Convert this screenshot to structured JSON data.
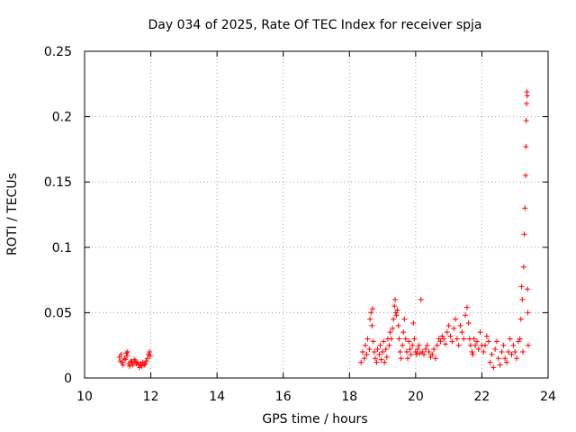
{
  "chart_data": {
    "type": "scatter",
    "title": "Day 034 of 2025, Rate Of TEC Index for receiver spja",
    "xlabel": "GPS time / hours",
    "ylabel": "ROTI / TECUs",
    "xlim": [
      10,
      24
    ],
    "ylim": [
      0,
      0.25
    ],
    "x_ticks": [
      10,
      12,
      14,
      16,
      18,
      20,
      22,
      24
    ],
    "x_tick_labels": [
      "10",
      "12",
      "14",
      "16",
      "18",
      "20",
      "22",
      "24"
    ],
    "y_ticks": [
      0,
      0.05,
      0.1,
      0.15,
      0.2,
      0.25
    ],
    "y_tick_labels": [
      "0",
      "0.05",
      "0.1",
      "0.15",
      "0.2",
      "0.25"
    ],
    "grid": true,
    "legend": "none",
    "marker": "plus",
    "color": "#ff0000",
    "points": [
      [
        11.05,
        0.016
      ],
      [
        11.08,
        0.013
      ],
      [
        11.1,
        0.018
      ],
      [
        11.13,
        0.012
      ],
      [
        11.16,
        0.01
      ],
      [
        11.2,
        0.015
      ],
      [
        11.23,
        0.014
      ],
      [
        11.26,
        0.019
      ],
      [
        11.28,
        0.017
      ],
      [
        11.3,
        0.02
      ],
      [
        11.33,
        0.011
      ],
      [
        11.36,
        0.009
      ],
      [
        11.4,
        0.013
      ],
      [
        11.43,
        0.012
      ],
      [
        11.46,
        0.01
      ],
      [
        11.5,
        0.014
      ],
      [
        11.53,
        0.013
      ],
      [
        11.56,
        0.011
      ],
      [
        11.6,
        0.012
      ],
      [
        11.63,
        0.01
      ],
      [
        11.66,
        0.008
      ],
      [
        11.7,
        0.011
      ],
      [
        11.73,
        0.009
      ],
      [
        11.76,
        0.012
      ],
      [
        11.8,
        0.01
      ],
      [
        11.83,
        0.011
      ],
      [
        11.86,
        0.013
      ],
      [
        11.9,
        0.015
      ],
      [
        11.93,
        0.018
      ],
      [
        11.96,
        0.02
      ],
      [
        11.98,
        0.017
      ],
      [
        18.35,
        0.012
      ],
      [
        18.4,
        0.02
      ],
      [
        18.45,
        0.015
      ],
      [
        18.48,
        0.025
      ],
      [
        18.52,
        0.018
      ],
      [
        18.55,
        0.03
      ],
      [
        18.6,
        0.022
      ],
      [
        18.62,
        0.045
      ],
      [
        18.65,
        0.05
      ],
      [
        18.68,
        0.04
      ],
      [
        18.7,
        0.053
      ],
      [
        18.72,
        0.028
      ],
      [
        18.75,
        0.02
      ],
      [
        18.78,
        0.015
      ],
      [
        18.82,
        0.012
      ],
      [
        18.85,
        0.022
      ],
      [
        18.9,
        0.018
      ],
      [
        18.93,
        0.025
      ],
      [
        18.96,
        0.014
      ],
      [
        19.0,
        0.02
      ],
      [
        19.03,
        0.028
      ],
      [
        19.06,
        0.012
      ],
      [
        19.1,
        0.022
      ],
      [
        19.13,
        0.016
      ],
      [
        19.16,
        0.03
      ],
      [
        19.2,
        0.025
      ],
      [
        19.23,
        0.035
      ],
      [
        19.26,
        0.03
      ],
      [
        19.3,
        0.038
      ],
      [
        19.33,
        0.045
      ],
      [
        19.36,
        0.055
      ],
      [
        19.38,
        0.06
      ],
      [
        19.4,
        0.05
      ],
      [
        19.42,
        0.048
      ],
      [
        19.45,
        0.052
      ],
      [
        19.48,
        0.04
      ],
      [
        19.5,
        0.03
      ],
      [
        19.53,
        0.02
      ],
      [
        19.56,
        0.015
      ],
      [
        19.6,
        0.025
      ],
      [
        19.63,
        0.035
      ],
      [
        19.66,
        0.045
      ],
      [
        19.7,
        0.03
      ],
      [
        19.73,
        0.02
      ],
      [
        19.76,
        0.015
      ],
      [
        19.8,
        0.028
      ],
      [
        19.83,
        0.022
      ],
      [
        19.86,
        0.018
      ],
      [
        19.9,
        0.025
      ],
      [
        19.93,
        0.042
      ],
      [
        19.96,
        0.03
      ],
      [
        20.0,
        0.02
      ],
      [
        20.03,
        0.018
      ],
      [
        20.06,
        0.022
      ],
      [
        20.1,
        0.025
      ],
      [
        20.13,
        0.019
      ],
      [
        20.16,
        0.06
      ],
      [
        20.2,
        0.02
      ],
      [
        20.25,
        0.018
      ],
      [
        20.3,
        0.022
      ],
      [
        20.35,
        0.025
      ],
      [
        20.4,
        0.02
      ],
      [
        20.45,
        0.016
      ],
      [
        20.5,
        0.018
      ],
      [
        20.55,
        0.022
      ],
      [
        20.6,
        0.015
      ],
      [
        20.65,
        0.025
      ],
      [
        20.7,
        0.03
      ],
      [
        20.75,
        0.028
      ],
      [
        20.8,
        0.032
      ],
      [
        20.85,
        0.03
      ],
      [
        20.9,
        0.026
      ],
      [
        20.95,
        0.035
      ],
      [
        21.0,
        0.04
      ],
      [
        21.05,
        0.032
      ],
      [
        21.1,
        0.028
      ],
      [
        21.15,
        0.038
      ],
      [
        21.2,
        0.045
      ],
      [
        21.25,
        0.03
      ],
      [
        21.3,
        0.025
      ],
      [
        21.35,
        0.04
      ],
      [
        21.4,
        0.035
      ],
      [
        21.45,
        0.03
      ],
      [
        21.5,
        0.048
      ],
      [
        21.55,
        0.054
      ],
      [
        21.6,
        0.042
      ],
      [
        21.63,
        0.03
      ],
      [
        21.66,
        0.025
      ],
      [
        21.7,
        0.02
      ],
      [
        21.73,
        0.018
      ],
      [
        21.76,
        0.03
      ],
      [
        21.8,
        0.025
      ],
      [
        21.85,
        0.028
      ],
      [
        21.9,
        0.022
      ],
      [
        21.95,
        0.035
      ],
      [
        22.0,
        0.025
      ],
      [
        22.05,
        0.02
      ],
      [
        22.1,
        0.025
      ],
      [
        22.15,
        0.032
      ],
      [
        22.2,
        0.028
      ],
      [
        22.25,
        0.012
      ],
      [
        22.3,
        0.018
      ],
      [
        22.35,
        0.008
      ],
      [
        22.4,
        0.022
      ],
      [
        22.45,
        0.028
      ],
      [
        22.5,
        0.015
      ],
      [
        22.55,
        0.01
      ],
      [
        22.6,
        0.02
      ],
      [
        22.65,
        0.025
      ],
      [
        22.7,
        0.015
      ],
      [
        22.75,
        0.012
      ],
      [
        22.8,
        0.02
      ],
      [
        22.85,
        0.03
      ],
      [
        22.9,
        0.018
      ],
      [
        22.95,
        0.025
      ],
      [
        23.0,
        0.02
      ],
      [
        23.05,
        0.015
      ],
      [
        23.1,
        0.028
      ],
      [
        23.15,
        0.03
      ],
      [
        23.18,
        0.045
      ],
      [
        23.2,
        0.07
      ],
      [
        23.22,
        0.06
      ],
      [
        23.24,
        0.02
      ],
      [
        23.26,
        0.085
      ],
      [
        23.28,
        0.11
      ],
      [
        23.3,
        0.13
      ],
      [
        23.32,
        0.155
      ],
      [
        23.33,
        0.177
      ],
      [
        23.34,
        0.197
      ],
      [
        23.35,
        0.21
      ],
      [
        23.36,
        0.219
      ],
      [
        23.37,
        0.216
      ],
      [
        23.38,
        0.068
      ],
      [
        23.39,
        0.05
      ],
      [
        23.4,
        0.025
      ]
    ]
  }
}
